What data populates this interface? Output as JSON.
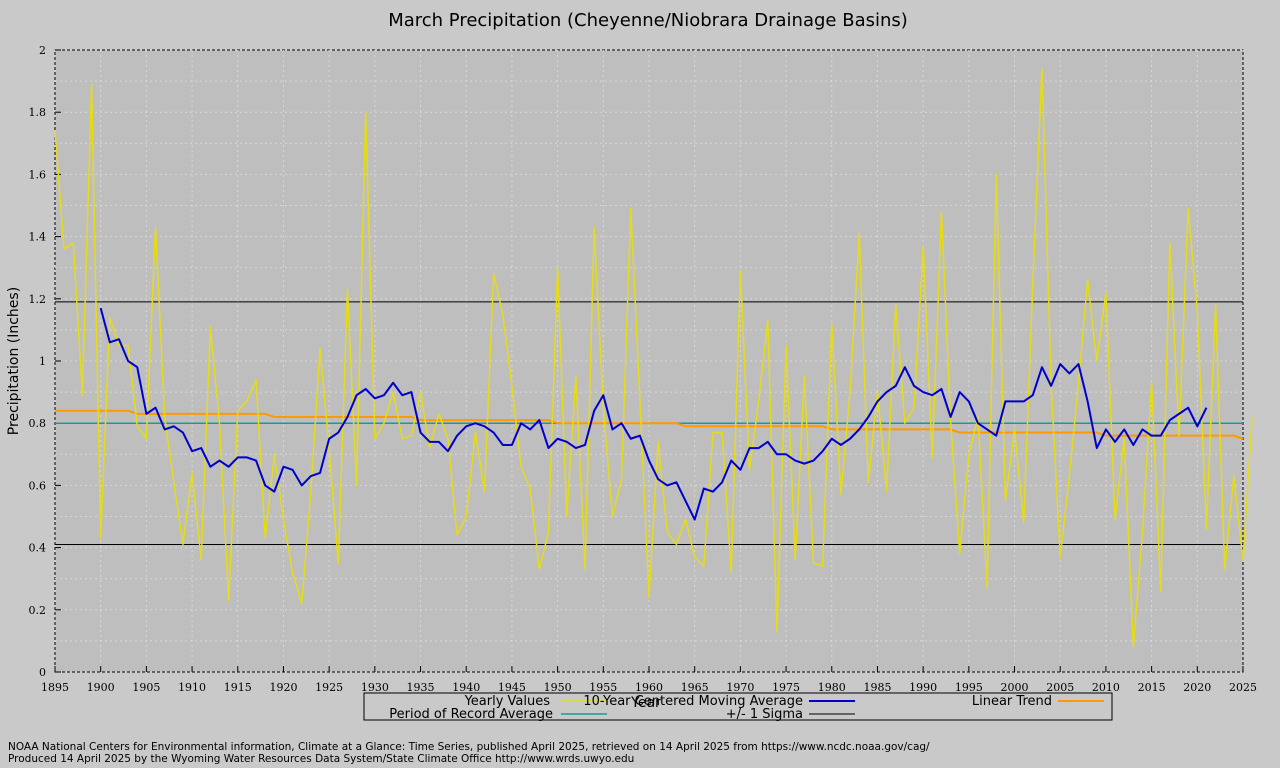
{
  "chart_data": {
    "type": "line",
    "title": "March Precipitation (Cheyenne/Niobrara Drainage Basins)",
    "xlabel": "Year",
    "ylabel": "Precipitation (Inches)",
    "xlim": [
      1895,
      2025
    ],
    "ylim": [
      0,
      2
    ],
    "x_ticks": [
      "1895",
      "1900",
      "1905",
      "1910",
      "1915",
      "1920",
      "1925",
      "1930",
      "1935",
      "1940",
      "1945",
      "1950",
      "1955",
      "1960",
      "1965",
      "1970",
      "1975",
      "1980",
      "1985",
      "1990",
      "1995",
      "2000",
      "2005",
      "2010",
      "2015",
      "2020",
      "2025"
    ],
    "y_ticks": [
      "0",
      "0.2",
      "0.4",
      "0.6",
      "0.8",
      "1",
      "1.2",
      "1.4",
      "1.6",
      "1.8",
      "2"
    ],
    "grid": true,
    "legend_position": "bottom",
    "series": [
      {
        "name": "Yearly Values",
        "color": "#e6dc14",
        "x_start": 1895,
        "values": [
          1.74,
          1.36,
          1.38,
          0.89,
          1.89,
          0.43,
          1.14,
          1.05,
          1.05,
          0.79,
          0.75,
          1.43,
          0.82,
          0.61,
          0.41,
          0.64,
          0.36,
          1.11,
          0.8,
          0.23,
          0.84,
          0.87,
          0.94,
          0.43,
          0.7,
          0.49,
          0.32,
          0.22,
          0.58,
          1.04,
          0.72,
          0.35,
          1.23,
          0.6,
          1.8,
          0.75,
          0.8,
          0.9,
          0.75,
          0.76,
          0.9,
          0.72,
          0.83,
          0.75,
          0.44,
          0.5,
          0.77,
          0.58,
          1.28,
          1.15,
          0.92,
          0.66,
          0.59,
          0.33,
          0.45,
          1.3,
          0.5,
          0.95,
          0.33,
          1.43,
          0.85,
          0.5,
          0.62,
          1.49,
          0.88,
          0.24,
          0.74,
          0.45,
          0.41,
          0.49,
          0.37,
          0.34,
          0.77,
          0.77,
          0.32,
          1.29,
          0.65,
          0.87,
          1.13,
          0.13,
          1.05,
          0.36,
          0.95,
          0.35,
          0.34,
          1.12,
          0.57,
          0.9,
          1.41,
          0.61,
          0.9,
          0.58,
          1.18,
          0.8,
          0.85,
          1.37,
          0.69,
          1.48,
          0.81,
          0.38,
          0.7,
          0.82,
          0.27,
          1.6,
          0.55,
          0.78,
          0.48,
          1.25,
          1.94,
          0.93,
          0.37,
          0.63,
          0.93,
          1.26,
          1.0,
          1.22,
          0.49,
          0.75,
          0.08,
          0.45,
          0.93,
          0.26,
          1.38,
          0.76,
          1.49,
          1.16,
          0.46,
          1.18,
          0.33,
          0.63,
          0.36,
          0.82
        ]
      },
      {
        "name": "10-Year Centered Moving Average",
        "color": "#0000cc",
        "x_start": 1900,
        "values": [
          1.17,
          1.06,
          1.07,
          1.0,
          0.98,
          0.83,
          0.85,
          0.78,
          0.79,
          0.77,
          0.71,
          0.72,
          0.66,
          0.68,
          0.66,
          0.69,
          0.69,
          0.68,
          0.6,
          0.58,
          0.66,
          0.65,
          0.6,
          0.63,
          0.64,
          0.75,
          0.77,
          0.82,
          0.89,
          0.91,
          0.88,
          0.89,
          0.93,
          0.89,
          0.9,
          0.77,
          0.74,
          0.74,
          0.71,
          0.76,
          0.79,
          0.8,
          0.79,
          0.77,
          0.73,
          0.73,
          0.8,
          0.78,
          0.81,
          0.72,
          0.75,
          0.74,
          0.72,
          0.73,
          0.84,
          0.89,
          0.78,
          0.8,
          0.75,
          0.76,
          0.68,
          0.62,
          0.6,
          0.61,
          0.55,
          0.49,
          0.59,
          0.58,
          0.61,
          0.68,
          0.65,
          0.72,
          0.72,
          0.74,
          0.7,
          0.7,
          0.68,
          0.67,
          0.68,
          0.71,
          0.75,
          0.73,
          0.75,
          0.78,
          0.82,
          0.87,
          0.9,
          0.92,
          0.98,
          0.92,
          0.9,
          0.89,
          0.91,
          0.82,
          0.9,
          0.87,
          0.8,
          0.78,
          0.76,
          0.87,
          0.87,
          0.87,
          0.89,
          0.98,
          0.92,
          0.99,
          0.96,
          0.99,
          0.87,
          0.72,
          0.78,
          0.74,
          0.78,
          0.73,
          0.78,
          0.76,
          0.76,
          0.81,
          0.83,
          0.85,
          0.79,
          0.85
        ]
      },
      {
        "name": "Linear Trend",
        "color": "#ff9900",
        "x": [
          1895,
          1903,
          1904,
          1918,
          1919,
          1934,
          1935,
          1949,
          1950,
          1963,
          1964,
          1979,
          1980,
          1993,
          1994,
          2009,
          2010,
          2024,
          2025
        ],
        "values": [
          0.84,
          0.84,
          0.83,
          0.83,
          0.82,
          0.82,
          0.81,
          0.81,
          0.8,
          0.8,
          0.79,
          0.79,
          0.78,
          0.78,
          0.77,
          0.77,
          0.76,
          0.76,
          0.75
        ]
      },
      {
        "name": "Period of Record Average",
        "color": "#1a9999",
        "constant": 0.8
      },
      {
        "name": "+/- 1 Sigma",
        "color": "#000000",
        "constants": [
          1.19,
          0.41
        ]
      }
    ]
  },
  "footer": {
    "line1": "NOAA National Centers for Environmental information, Climate at a Glance: Time Series, published April 2025, retrieved on 14 April 2025 from https://www.ncdc.noaa.gov/cag/",
    "line2": "Produced 14 April 2025 by the Wyoming Water Resources Data System/State Climate Office http://www.wrds.uwyo.edu"
  }
}
